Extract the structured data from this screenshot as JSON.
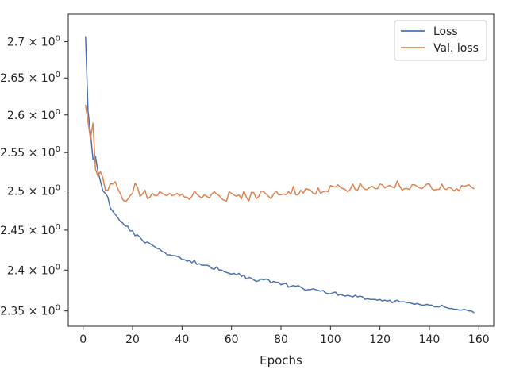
{
  "chart_data": {
    "type": "line",
    "title": "",
    "xlabel": "Epochs",
    "ylabel": "",
    "xlim": [
      -6,
      166
    ],
    "ylim": [
      2.3315,
      2.7385
    ],
    "yscale": "log",
    "grid": false,
    "legend_position": "upper right",
    "xticks": [
      0,
      20,
      40,
      60,
      80,
      100,
      120,
      140,
      160
    ],
    "xtick_labels": [
      "0",
      "20",
      "40",
      "60",
      "80",
      "100",
      "120",
      "140",
      "160"
    ],
    "yticks": [
      2.35,
      2.4,
      2.45,
      2.5,
      2.55,
      2.6,
      2.65,
      2.7
    ],
    "ytick_labels": [
      {
        "mantissa": "2.35",
        "base": "10",
        "exp": "0"
      },
      {
        "mantissa": "2.4",
        "base": "10",
        "exp": "0"
      },
      {
        "mantissa": "2.45",
        "base": "10",
        "exp": "0"
      },
      {
        "mantissa": "2.5",
        "base": "10",
        "exp": "0"
      },
      {
        "mantissa": "2.55",
        "base": "10",
        "exp": "0"
      },
      {
        "mantissa": "2.6",
        "base": "10",
        "exp": "0"
      },
      {
        "mantissa": "2.65",
        "base": "10",
        "exp": "0"
      },
      {
        "mantissa": "2.7",
        "base": "10",
        "exp": "0"
      }
    ],
    "x": [
      1,
      2,
      3,
      4,
      5,
      6,
      7,
      8,
      9,
      10,
      11,
      12,
      13,
      14,
      15,
      16,
      17,
      18,
      19,
      20,
      21,
      22,
      23,
      24,
      25,
      26,
      27,
      28,
      29,
      30,
      31,
      32,
      33,
      34,
      35,
      36,
      37,
      38,
      39,
      40,
      41,
      42,
      43,
      44,
      45,
      46,
      47,
      48,
      49,
      50,
      51,
      52,
      53,
      54,
      55,
      56,
      57,
      58,
      59,
      60,
      61,
      62,
      63,
      64,
      65,
      66,
      67,
      68,
      69,
      70,
      71,
      72,
      73,
      74,
      75,
      76,
      77,
      78,
      79,
      80,
      81,
      82,
      83,
      84,
      85,
      86,
      87,
      88,
      89,
      90,
      91,
      92,
      93,
      94,
      95,
      96,
      97,
      98,
      99,
      100,
      101,
      102,
      103,
      104,
      105,
      106,
      107,
      108,
      109,
      110,
      111,
      112,
      113,
      114,
      115,
      116,
      117,
      118,
      119,
      120,
      121,
      122,
      123,
      124,
      125,
      126,
      127,
      128,
      129,
      130,
      131,
      132,
      133,
      134,
      135,
      136,
      137,
      138,
      139,
      140,
      141,
      142,
      143,
      144,
      145,
      146,
      147,
      148,
      149,
      150,
      151,
      152,
      153,
      154,
      155,
      156,
      157,
      158
    ],
    "series": [
      {
        "name": "Loss",
        "color": "#4c72b0",
        "values": [
          2.707,
          2.605,
          2.575,
          2.541,
          2.545,
          2.525,
          2.513,
          2.5,
          2.497,
          2.492,
          2.478,
          2.474,
          2.47,
          2.466,
          2.461,
          2.459,
          2.455,
          2.455,
          2.449,
          2.449,
          2.443,
          2.444,
          2.441,
          2.437,
          2.434,
          2.435,
          2.433,
          2.431,
          2.429,
          2.427,
          2.426,
          2.423,
          2.422,
          2.419,
          2.419,
          2.418,
          2.418,
          2.417,
          2.416,
          2.413,
          2.413,
          2.411,
          2.412,
          2.409,
          2.412,
          2.407,
          2.408,
          2.406,
          2.406,
          2.406,
          2.405,
          2.402,
          2.401,
          2.404,
          2.4,
          2.4,
          2.398,
          2.397,
          2.396,
          2.395,
          2.396,
          2.394,
          2.396,
          2.392,
          2.394,
          2.389,
          2.391,
          2.39,
          2.388,
          2.386,
          2.387,
          2.389,
          2.388,
          2.389,
          2.388,
          2.384,
          2.386,
          2.385,
          2.385,
          2.382,
          2.383,
          2.384,
          2.379,
          2.38,
          2.381,
          2.38,
          2.381,
          2.379,
          2.377,
          2.375,
          2.376,
          2.376,
          2.377,
          2.376,
          2.375,
          2.374,
          2.375,
          2.372,
          2.371,
          2.371,
          2.372,
          2.373,
          2.369,
          2.37,
          2.369,
          2.368,
          2.369,
          2.368,
          2.367,
          2.369,
          2.367,
          2.368,
          2.367,
          2.364,
          2.365,
          2.364,
          2.364,
          2.364,
          2.363,
          2.364,
          2.362,
          2.363,
          2.362,
          2.363,
          2.36,
          2.362,
          2.363,
          2.361,
          2.361,
          2.361,
          2.36,
          2.36,
          2.359,
          2.358,
          2.359,
          2.358,
          2.357,
          2.357,
          2.358,
          2.357,
          2.357,
          2.355,
          2.355,
          2.355,
          2.357,
          2.355,
          2.354,
          2.353,
          2.353,
          2.352,
          2.352,
          2.351,
          2.351,
          2.352,
          2.351,
          2.35,
          2.35,
          2.348
        ]
      },
      {
        "name": "Val. loss",
        "color": "#dd8452",
        "values": [
          2.613,
          2.59,
          2.568,
          2.589,
          2.528,
          2.519,
          2.525,
          2.517,
          2.501,
          2.501,
          2.509,
          2.509,
          2.512,
          2.503,
          2.497,
          2.489,
          2.486,
          2.489,
          2.494,
          2.497,
          2.51,
          2.505,
          2.493,
          2.496,
          2.501,
          2.49,
          2.492,
          2.497,
          2.494,
          2.494,
          2.499,
          2.497,
          2.495,
          2.494,
          2.497,
          2.494,
          2.495,
          2.497,
          2.494,
          2.496,
          2.492,
          2.492,
          2.489,
          2.493,
          2.5,
          2.496,
          2.493,
          2.491,
          2.495,
          2.493,
          2.491,
          2.496,
          2.499,
          2.496,
          2.494,
          2.49,
          2.488,
          2.487,
          2.499,
          2.497,
          2.495,
          2.493,
          2.495,
          2.49,
          2.5,
          2.492,
          2.487,
          2.498,
          2.498,
          2.49,
          2.493,
          2.5,
          2.499,
          2.496,
          2.493,
          2.49,
          2.496,
          2.5,
          2.495,
          2.495,
          2.496,
          2.495,
          2.499,
          2.496,
          2.506,
          2.495,
          2.495,
          2.501,
          2.497,
          2.503,
          2.502,
          2.501,
          2.497,
          2.496,
          2.504,
          2.497,
          2.499,
          2.5,
          2.499,
          2.507,
          2.506,
          2.505,
          2.508,
          2.505,
          2.503,
          2.502,
          2.499,
          2.502,
          2.509,
          2.502,
          2.501,
          2.51,
          2.505,
          2.502,
          2.502,
          2.505,
          2.506,
          2.503,
          2.503,
          2.509,
          2.508,
          2.504,
          2.506,
          2.507,
          2.505,
          2.504,
          2.513,
          2.506,
          2.501,
          2.503,
          2.503,
          2.502,
          2.508,
          2.508,
          2.506,
          2.504,
          2.503,
          2.506,
          2.509,
          2.509,
          2.503,
          2.501,
          2.502,
          2.502,
          2.509,
          2.503,
          2.502,
          2.505,
          2.503,
          2.5,
          2.503,
          2.5,
          2.507,
          2.506,
          2.507,
          2.508,
          2.505,
          2.503
        ]
      }
    ]
  }
}
